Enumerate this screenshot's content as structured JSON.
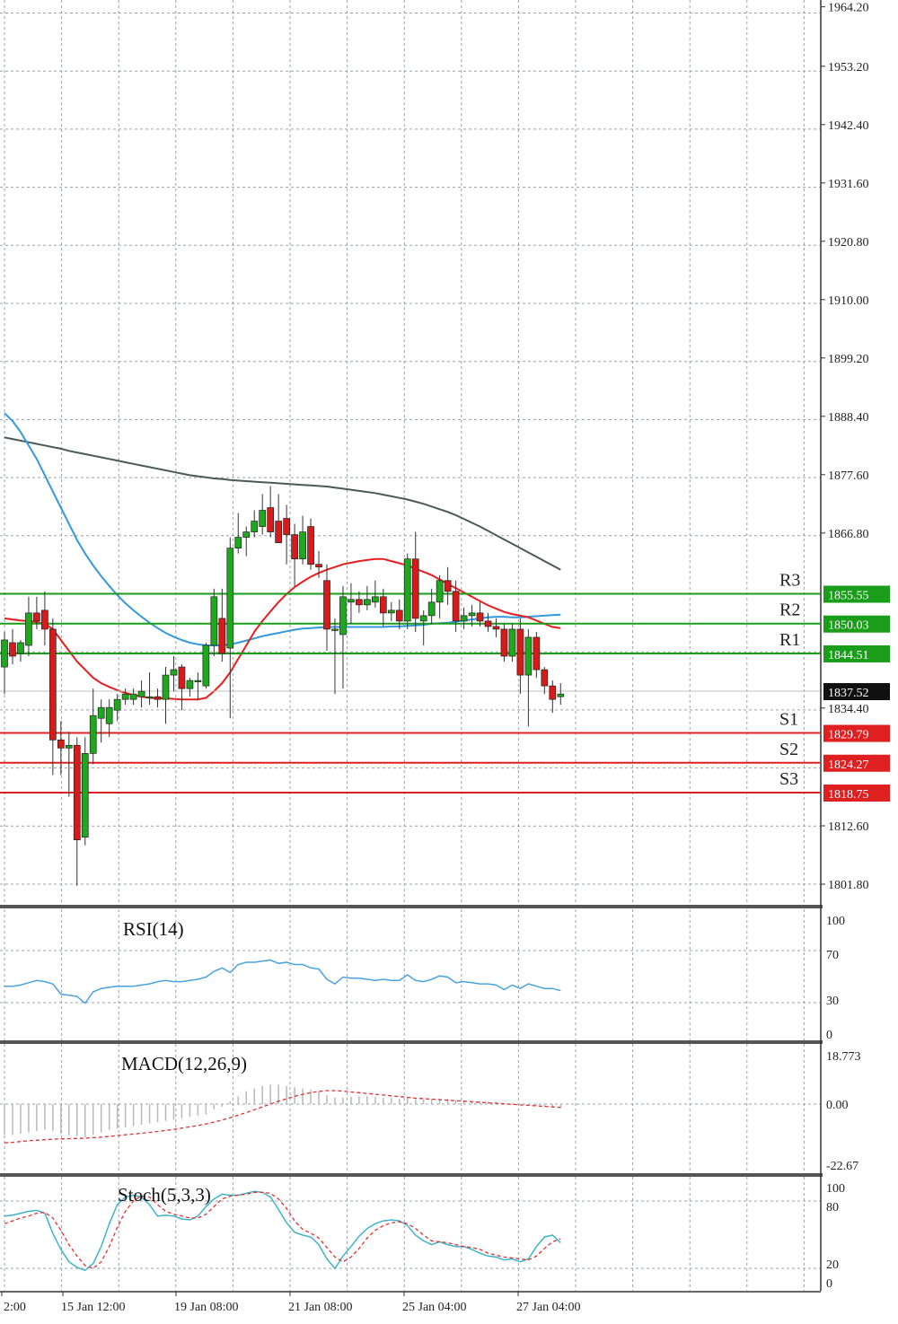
{
  "chart_data": {
    "type": "candlestick",
    "price_panel": {
      "ylim": [
        1796.4,
        1969.6
      ],
      "y_ticks": [
        "1964.20",
        "1953.20",
        "1942.40",
        "1931.60",
        "1920.80",
        "1910.00",
        "1899.20",
        "1888.40",
        "1877.60",
        "1866.80",
        "1834.40",
        "1812.60",
        "1801.80"
      ],
      "current_price": "1837.52",
      "levels": [
        {
          "name": "R3",
          "value": "1855.55",
          "color": "#1a9e1a"
        },
        {
          "name": "R2",
          "value": "1850.03",
          "color": "#1a9e1a"
        },
        {
          "name": "R1",
          "value": "1844.51",
          "color": "#1a9e1a"
        },
        {
          "name": "S1",
          "value": "1829.79",
          "color": "#e02020"
        },
        {
          "name": "S2",
          "value": "1824.27",
          "color": "#e02020"
        },
        {
          "name": "S3",
          "value": "1818.75",
          "color": "#e02020"
        }
      ],
      "candles": [
        {
          "o": 1842.0,
          "h": 1848.5,
          "l": 1837.0,
          "c": 1847.0
        },
        {
          "o": 1846.5,
          "h": 1849.0,
          "l": 1842.5,
          "c": 1844.0
        },
        {
          "o": 1844.5,
          "h": 1847.0,
          "l": 1843.0,
          "c": 1846.5
        },
        {
          "o": 1846.0,
          "h": 1855.0,
          "l": 1844.0,
          "c": 1852.0
        },
        {
          "o": 1852.0,
          "h": 1855.0,
          "l": 1849.0,
          "c": 1850.5
        },
        {
          "o": 1852.5,
          "h": 1856.0,
          "l": 1846.0,
          "c": 1849.0
        },
        {
          "o": 1849.0,
          "h": 1851.0,
          "l": 1822.0,
          "c": 1828.5
        },
        {
          "o": 1828.5,
          "h": 1832.0,
          "l": 1822.0,
          "c": 1827.0
        },
        {
          "o": 1827.0,
          "h": 1830.0,
          "l": 1818.0,
          "c": 1827.5
        },
        {
          "o": 1827.5,
          "h": 1829.0,
          "l": 1801.5,
          "c": 1810.0
        },
        {
          "o": 1810.5,
          "h": 1829.0,
          "l": 1809.0,
          "c": 1826.0
        },
        {
          "o": 1826.0,
          "h": 1838.0,
          "l": 1824.0,
          "c": 1833.0
        },
        {
          "o": 1832.5,
          "h": 1836.0,
          "l": 1828.0,
          "c": 1834.5
        },
        {
          "o": 1831.5,
          "h": 1836.0,
          "l": 1829.0,
          "c": 1834.5
        },
        {
          "o": 1834.0,
          "h": 1837.0,
          "l": 1832.0,
          "c": 1836.0
        },
        {
          "o": 1836.0,
          "h": 1838.0,
          "l": 1835.0,
          "c": 1837.0
        },
        {
          "o": 1836.0,
          "h": 1838.0,
          "l": 1835.0,
          "c": 1837.0
        },
        {
          "o": 1836.5,
          "h": 1839.5,
          "l": 1834.5,
          "c": 1837.5
        },
        {
          "o": 1836.5,
          "h": 1841.0,
          "l": 1835.0,
          "c": 1836.5
        },
        {
          "o": 1836.5,
          "h": 1838.0,
          "l": 1834.5,
          "c": 1836.0
        },
        {
          "o": 1836.0,
          "h": 1842.0,
          "l": 1831.5,
          "c": 1840.5
        },
        {
          "o": 1840.5,
          "h": 1844.0,
          "l": 1837.5,
          "c": 1841.5
        },
        {
          "o": 1842.0,
          "h": 1842.5,
          "l": 1834.0,
          "c": 1838.0
        },
        {
          "o": 1838.0,
          "h": 1840.0,
          "l": 1836.5,
          "c": 1839.5
        },
        {
          "o": 1839.5,
          "h": 1841.0,
          "l": 1836.0,
          "c": 1839.5
        },
        {
          "o": 1838.5,
          "h": 1846.5,
          "l": 1838.0,
          "c": 1846.0
        },
        {
          "o": 1846.0,
          "h": 1856.5,
          "l": 1844.0,
          "c": 1855.0
        },
        {
          "o": 1851.0,
          "h": 1856.5,
          "l": 1843.0,
          "c": 1844.5
        },
        {
          "o": 1845.5,
          "h": 1866.0,
          "l": 1832.5,
          "c": 1864.0
        },
        {
          "o": 1864.0,
          "h": 1870.5,
          "l": 1863.0,
          "c": 1866.0
        },
        {
          "o": 1866.0,
          "h": 1868.0,
          "l": 1862.5,
          "c": 1867.0
        },
        {
          "o": 1867.0,
          "h": 1871.0,
          "l": 1866.0,
          "c": 1869.0
        },
        {
          "o": 1868.0,
          "h": 1874.0,
          "l": 1866.5,
          "c": 1871.0
        },
        {
          "o": 1871.5,
          "h": 1875.5,
          "l": 1866.0,
          "c": 1867.0
        },
        {
          "o": 1869.0,
          "h": 1874.0,
          "l": 1865.0,
          "c": 1865.0
        },
        {
          "o": 1869.5,
          "h": 1872.0,
          "l": 1861.0,
          "c": 1866.5
        },
        {
          "o": 1866.5,
          "h": 1868.5,
          "l": 1857.0,
          "c": 1862.0
        },
        {
          "o": 1862.0,
          "h": 1870.0,
          "l": 1861.0,
          "c": 1867.0
        },
        {
          "o": 1868.0,
          "h": 1869.5,
          "l": 1860.0,
          "c": 1861.0
        },
        {
          "o": 1861.0,
          "h": 1863.5,
          "l": 1858.5,
          "c": 1860.5
        },
        {
          "o": 1858.0,
          "h": 1861.0,
          "l": 1845.0,
          "c": 1849.0
        },
        {
          "o": 1849.0,
          "h": 1851.0,
          "l": 1837.0,
          "c": 1849.0
        },
        {
          "o": 1848.0,
          "h": 1857.0,
          "l": 1838.0,
          "c": 1855.0
        },
        {
          "o": 1854.0,
          "h": 1857.5,
          "l": 1850.0,
          "c": 1854.5
        },
        {
          "o": 1854.5,
          "h": 1856.0,
          "l": 1852.0,
          "c": 1853.5
        },
        {
          "o": 1853.5,
          "h": 1857.0,
          "l": 1852.5,
          "c": 1854.5
        },
        {
          "o": 1854.0,
          "h": 1858.0,
          "l": 1853.0,
          "c": 1855.0
        },
        {
          "o": 1855.0,
          "h": 1856.5,
          "l": 1849.5,
          "c": 1852.0
        },
        {
          "o": 1852.0,
          "h": 1854.0,
          "l": 1850.5,
          "c": 1852.5
        },
        {
          "o": 1852.5,
          "h": 1854.5,
          "l": 1849.0,
          "c": 1850.5
        },
        {
          "o": 1850.5,
          "h": 1863.0,
          "l": 1849.0,
          "c": 1862.0
        },
        {
          "o": 1862.0,
          "h": 1867.0,
          "l": 1848.5,
          "c": 1851.0
        },
        {
          "o": 1850.5,
          "h": 1852.5,
          "l": 1846.0,
          "c": 1851.5
        },
        {
          "o": 1851.5,
          "h": 1856.5,
          "l": 1850.0,
          "c": 1854.0
        },
        {
          "o": 1854.0,
          "h": 1859.0,
          "l": 1851.0,
          "c": 1858.0
        },
        {
          "o": 1858.0,
          "h": 1860.5,
          "l": 1853.5,
          "c": 1856.0
        },
        {
          "o": 1856.0,
          "h": 1858.0,
          "l": 1848.5,
          "c": 1850.5
        },
        {
          "o": 1850.5,
          "h": 1853.0,
          "l": 1849.0,
          "c": 1851.5
        },
        {
          "o": 1851.5,
          "h": 1853.5,
          "l": 1849.5,
          "c": 1852.0
        },
        {
          "o": 1852.0,
          "h": 1854.0,
          "l": 1849.5,
          "c": 1850.5
        },
        {
          "o": 1850.5,
          "h": 1852.0,
          "l": 1848.5,
          "c": 1849.5
        },
        {
          "o": 1849.5,
          "h": 1851.0,
          "l": 1847.5,
          "c": 1849.0
        },
        {
          "o": 1849.0,
          "h": 1850.0,
          "l": 1843.0,
          "c": 1844.0
        },
        {
          "o": 1844.0,
          "h": 1850.0,
          "l": 1843.0,
          "c": 1849.0
        },
        {
          "o": 1849.0,
          "h": 1851.0,
          "l": 1837.0,
          "c": 1840.5
        },
        {
          "o": 1840.5,
          "h": 1849.0,
          "l": 1831.0,
          "c": 1847.5
        },
        {
          "o": 1847.5,
          "h": 1848.5,
          "l": 1840.0,
          "c": 1841.5
        },
        {
          "o": 1841.5,
          "h": 1842.0,
          "l": 1837.0,
          "c": 1838.5
        },
        {
          "o": 1838.5,
          "h": 1839.5,
          "l": 1833.5,
          "c": 1836.0
        },
        {
          "o": 1836.5,
          "h": 1839.0,
          "l": 1835.0,
          "c": 1837.0
        }
      ],
      "ma_fast": [
        1851,
        1850.8,
        1850.6,
        1850.5,
        1850.3,
        1850,
        1849,
        1847,
        1845,
        1843,
        1841.5,
        1840,
        1839,
        1838.3,
        1837.7,
        1837.2,
        1836.8,
        1836.5,
        1836.3,
        1836.2,
        1836.2,
        1836.1,
        1836,
        1836,
        1836,
        1836.3,
        1837.5,
        1839,
        1841,
        1843.5,
        1846,
        1848.5,
        1850.5,
        1852.3,
        1854,
        1855.5,
        1856.8,
        1857.8,
        1858.7,
        1859.4,
        1860,
        1860.5,
        1861,
        1861.3,
        1861.6,
        1861.8,
        1862,
        1862,
        1861.6,
        1861.2,
        1860.8,
        1860.2,
        1859.6,
        1859,
        1858.2,
        1857.4,
        1856.6,
        1855.8,
        1855,
        1854.2,
        1853.4,
        1852.8,
        1852.2,
        1851.8,
        1851.5,
        1851.2,
        1850.6,
        1850,
        1849.4,
        1849.2
      ],
      "ma_mid": [
        1889,
        1887.5,
        1885.5,
        1883,
        1880.5,
        1877.5,
        1874.5,
        1871.5,
        1868.5,
        1865.5,
        1863,
        1860.8,
        1858.8,
        1857,
        1855.3,
        1853.8,
        1852.5,
        1851.3,
        1850.2,
        1849.2,
        1848.3,
        1847.6,
        1847,
        1846.5,
        1846.2,
        1846,
        1846,
        1846,
        1846.2,
        1846.5,
        1846.9,
        1847.3,
        1847.7,
        1848,
        1848.3,
        1848.6,
        1848.9,
        1849.1,
        1849.2,
        1849.3,
        1849.4,
        1849.4,
        1849.4,
        1849.4,
        1849.4,
        1849.4,
        1849.4,
        1849.4,
        1849.5,
        1849.5,
        1849.6,
        1849.7,
        1849.8,
        1850,
        1850.1,
        1850.2,
        1850.4,
        1850.6,
        1850.8,
        1851,
        1851.2,
        1851.3,
        1851.3,
        1851.2,
        1851.2,
        1851.3,
        1851.4,
        1851.5,
        1851.6,
        1851.7
      ],
      "ma_slow": [
        1884.5,
        1884.2,
        1883.9,
        1883.6,
        1883.3,
        1883,
        1882.7,
        1882.4,
        1882,
        1881.7,
        1881.4,
        1881.1,
        1880.8,
        1880.5,
        1880.2,
        1879.9,
        1879.6,
        1879.3,
        1879,
        1878.7,
        1878.4,
        1878.1,
        1877.8,
        1877.5,
        1877.3,
        1877.1,
        1876.9,
        1876.8,
        1876.6,
        1876.5,
        1876.4,
        1876.3,
        1876.2,
        1876.1,
        1876,
        1875.9,
        1875.8,
        1875.7,
        1875.6,
        1875.5,
        1875.4,
        1875.2,
        1875,
        1874.8,
        1874.6,
        1874.4,
        1874.2,
        1873.9,
        1873.6,
        1873.3,
        1873,
        1872.6,
        1872.2,
        1871.7,
        1871.2,
        1870.7,
        1870.1,
        1869.4,
        1868.7,
        1868,
        1867.2,
        1866.4,
        1865.6,
        1864.8,
        1864,
        1863.2,
        1862.4,
        1861.6,
        1860.8,
        1860
      ]
    },
    "rsi_panel": {
      "title": "RSI(14)",
      "y_ticks": [
        "100",
        "70",
        "30",
        "0"
      ],
      "values": [
        42,
        42,
        43,
        45,
        47,
        46,
        44,
        35,
        34,
        33,
        27,
        37,
        40,
        41,
        42,
        42,
        42,
        43,
        44,
        46,
        47,
        46,
        46,
        47,
        48,
        50,
        55,
        58,
        54,
        61,
        63,
        63,
        64,
        65,
        62,
        63,
        61,
        61,
        58,
        57,
        48,
        44,
        50,
        49,
        49,
        48,
        47,
        48,
        47,
        47,
        52,
        47,
        46,
        48,
        51,
        50,
        45,
        46,
        45,
        44,
        44,
        43,
        39,
        43,
        40,
        44,
        42,
        40,
        40,
        38
      ]
    },
    "macd_panel": {
      "title": "MACD(12,26,9)",
      "y_ticks": [
        "18.773",
        "0.00",
        "-22.67"
      ],
      "histogram": [
        -12,
        -12,
        -11.5,
        -11,
        -10.5,
        -10,
        -10.5,
        -11.5,
        -12,
        -12.5,
        -13,
        -12,
        -11,
        -10,
        -9.5,
        -9,
        -8.5,
        -8,
        -7.5,
        -7,
        -6.5,
        -6,
        -5.5,
        -5,
        -4.5,
        -4,
        -2,
        -1,
        1,
        3,
        5,
        6,
        7,
        7.5,
        7.5,
        7,
        6.5,
        6,
        5.5,
        5,
        3.5,
        2.5,
        2.5,
        2.8,
        3,
        3,
        2.8,
        2.5,
        2.3,
        2,
        2.5,
        2,
        1.8,
        2,
        2.2,
        2,
        1.5,
        1.4,
        1.3,
        1.2,
        1,
        0.8,
        0.4,
        0.3,
        -0.2,
        -0.2,
        -0.6,
        -1,
        -1.4,
        -1.6
      ],
      "signal": [
        -15,
        -14.8,
        -14.5,
        -14.2,
        -14,
        -13.8,
        -13.6,
        -13.5,
        -13.4,
        -13.3,
        -13.2,
        -13,
        -12.8,
        -12.5,
        -12.2,
        -11.9,
        -11.6,
        -11.3,
        -11,
        -10.6,
        -10.2,
        -9.8,
        -9.3,
        -8.8,
        -8.3,
        -7.7,
        -7,
        -6.2,
        -5.3,
        -4.3,
        -3.3,
        -2.2,
        -1.1,
        0,
        1.1,
        2.1,
        3,
        3.8,
        4.4,
        4.9,
        5.2,
        5.2,
        5,
        4.7,
        4.4,
        4.1,
        3.8,
        3.5,
        3.2,
        2.9,
        2.6,
        2.3,
        2.1,
        1.9,
        1.7,
        1.5,
        1.3,
        1.1,
        0.9,
        0.7,
        0.5,
        0.3,
        0.1,
        -0.1,
        -0.3,
        -0.5,
        -0.7,
        -0.9,
        -1.1,
        -1.3
      ]
    },
    "stoch_panel": {
      "title": "Stoch(5,3,3)",
      "y_ticks": [
        "100",
        "80",
        "20",
        "0"
      ],
      "k": [
        70,
        71,
        73,
        75,
        76,
        73,
        52,
        35,
        22,
        16,
        13,
        20,
        38,
        62,
        82,
        90,
        92,
        90,
        82,
        70,
        71,
        70,
        67,
        66,
        70,
        80,
        88,
        93,
        92,
        92,
        94,
        96,
        95,
        90,
        77,
        63,
        53,
        50,
        48,
        40,
        25,
        15,
        28,
        38,
        49,
        57,
        62,
        65,
        66,
        65,
        60,
        50,
        44,
        40,
        43,
        40,
        38,
        38,
        35,
        31,
        28,
        27,
        24,
        25,
        22,
        25,
        38,
        48,
        50,
        42
      ],
      "d": [
        62,
        65,
        68,
        70,
        73,
        74,
        68,
        55,
        40,
        28,
        18,
        15,
        22,
        38,
        58,
        75,
        86,
        91,
        90,
        82,
        75,
        72,
        70,
        68,
        68,
        72,
        80,
        88,
        91,
        92,
        93,
        95,
        95,
        94,
        88,
        78,
        65,
        56,
        52,
        47,
        37,
        27,
        22,
        27,
        36,
        47,
        55,
        60,
        63,
        64,
        62,
        57,
        50,
        44,
        43,
        42,
        40,
        38,
        37,
        35,
        31,
        29,
        27,
        26,
        25,
        24,
        28,
        36,
        43,
        46
      ]
    },
    "x_labels": [
      "2:00",
      "15 Jan 12:00",
      "19 Jan 08:00",
      "21 Jan 08:00",
      "25 Jan 04:00",
      "27 Jan 04:00"
    ],
    "colors": {
      "bull": "#1ea81e",
      "bear": "#d81a1a",
      "ma_fast": "#e81e1e",
      "ma_mid": "#3399dd",
      "ma_slow": "#4a5a55",
      "rsi": "#4aa3e0",
      "stoch_k": "#3fb3c9",
      "stoch_d": "#e03030",
      "grid": "#9aa0a6",
      "price_line": "#c0c0c0"
    }
  }
}
